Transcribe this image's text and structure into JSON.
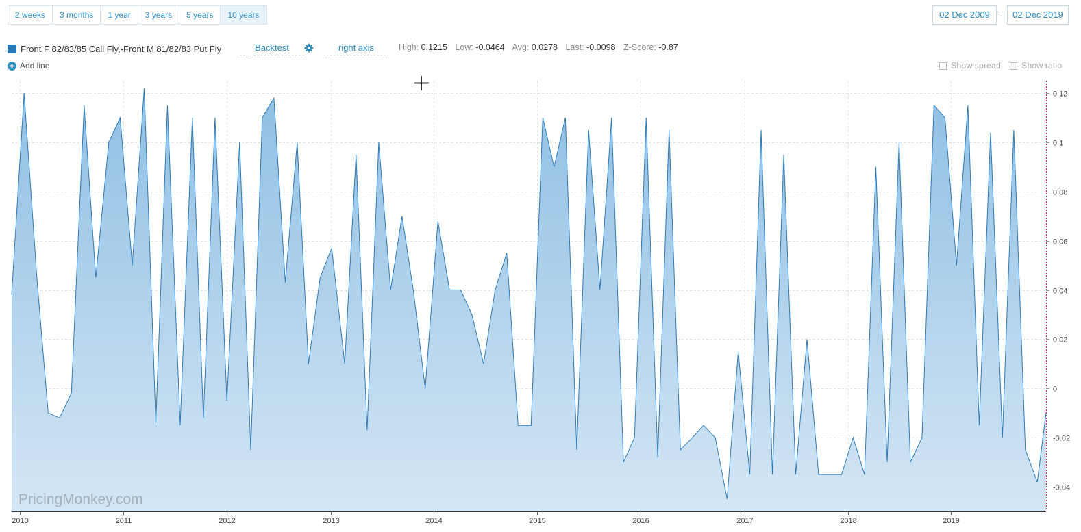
{
  "range_buttons": [
    {
      "label": "2 weeks",
      "active": false
    },
    {
      "label": "3 months",
      "active": false
    },
    {
      "label": "1 year",
      "active": false
    },
    {
      "label": "3 years",
      "active": false
    },
    {
      "label": "5 years",
      "active": false
    },
    {
      "label": "10 years",
      "active": true
    }
  ],
  "date_from": "02 Dec 2009",
  "date_separator": "-",
  "date_to": "02 Dec 2019",
  "series_label": "Front F 82/83/85 Call Fly,-Front M 81/82/83 Put Fly",
  "backtest_label": "Backtest",
  "axis_label": "right axis",
  "stats": {
    "high_label": "High:",
    "high": "0.1215",
    "low_label": "Low:",
    "low": "-0.0464",
    "avg_label": "Avg:",
    "avg": "0.0278",
    "last_label": "Last:",
    "last": "-0.0098",
    "z_label": "Z-Score:",
    "z": "-0.87"
  },
  "add_line_label": "Add line",
  "show_spread_label": "Show spread",
  "show_ratio_label": "Show ratio",
  "watermark": "PricingMonkey.com",
  "colors": {
    "line": "#2a7ab8",
    "fill_top": "#8fbfe3",
    "fill_bottom": "#d4e6f5",
    "accent": "#2a8fc7"
  },
  "icons": {
    "gear": "gear-icon",
    "add": "plus-circle-icon",
    "swatch": "series-swatch"
  },
  "chart_data": {
    "type": "area",
    "series": [
      {
        "name": "Front F 82/83/85 Call Fly,-Front M 81/82/83 Put Fly"
      }
    ],
    "y_axis_position": "right",
    "ylim": [
      -0.05,
      0.125
    ],
    "y_ticks": [
      0.12,
      0.1,
      0.08,
      0.06,
      0.04,
      0.02,
      0,
      -0.02,
      -0.04
    ],
    "y_tick_labels": [
      "0.12",
      "0.1",
      "0.08",
      "0.06",
      "0.04",
      "0.02",
      "0",
      "-0.02",
      "-0.04"
    ],
    "x_ticks": [
      "2010",
      "2011",
      "2012",
      "2013",
      "2014",
      "2015",
      "2016",
      "2017",
      "2018",
      "2019"
    ],
    "xlim": [
      "2009-12-02",
      "2019-12-02"
    ],
    "grid": true,
    "x": [
      "2009-12-02",
      "2010-01-15",
      "2010-03-01",
      "2010-04-10",
      "2010-05-20",
      "2010-07-01",
      "2010-08-15",
      "2010-09-25",
      "2010-11-10",
      "2010-12-20",
      "2011-02-01",
      "2011-03-15",
      "2011-04-25",
      "2011-06-05",
      "2011-07-20",
      "2011-09-01",
      "2011-10-10",
      "2011-11-20",
      "2012-01-01",
      "2012-02-15",
      "2012-03-25",
      "2012-05-05",
      "2012-06-15",
      "2012-07-25",
      "2012-09-05",
      "2012-10-15",
      "2012-11-25",
      "2013-01-05",
      "2013-02-20",
      "2013-04-01",
      "2013-05-10",
      "2013-06-20",
      "2013-08-01",
      "2013-09-10",
      "2013-10-20",
      "2013-12-01",
      "2014-01-15",
      "2014-02-25",
      "2014-04-05",
      "2014-05-15",
      "2014-06-25",
      "2014-08-05",
      "2014-09-15",
      "2014-10-25",
      "2014-12-10",
      "2015-01-20",
      "2015-03-01",
      "2015-04-10",
      "2015-05-20",
      "2015-07-01",
      "2015-08-10",
      "2015-09-20",
      "2015-11-01",
      "2015-12-10",
      "2016-01-20",
      "2016-03-01",
      "2016-04-10",
      "2016-05-20",
      "2016-07-01",
      "2016-08-10",
      "2016-09-20",
      "2016-11-01",
      "2016-12-10",
      "2017-01-20",
      "2017-03-01",
      "2017-04-10",
      "2017-05-20",
      "2017-07-01",
      "2017-08-10",
      "2017-09-20",
      "2017-11-01",
      "2017-12-10",
      "2018-01-20",
      "2018-03-01",
      "2018-04-10",
      "2018-05-20",
      "2018-07-01",
      "2018-08-10",
      "2018-09-20",
      "2018-11-01",
      "2018-12-10",
      "2019-01-20",
      "2019-03-01",
      "2019-04-10",
      "2019-05-20",
      "2019-07-01",
      "2019-08-10",
      "2019-09-20",
      "2019-11-01",
      "2019-12-02"
    ],
    "values": [
      0.038,
      0.12,
      0.045,
      -0.01,
      -0.012,
      -0.002,
      0.115,
      0.045,
      0.1,
      0.11,
      0.05,
      0.122,
      -0.014,
      0.115,
      -0.015,
      0.11,
      -0.012,
      0.11,
      -0.005,
      0.1,
      -0.025,
      0.11,
      0.118,
      0.043,
      0.1,
      0.01,
      0.045,
      0.057,
      0.01,
      0.095,
      -0.017,
      0.1,
      0.04,
      0.07,
      0.04,
      0.0,
      0.068,
      0.04,
      0.04,
      0.03,
      0.01,
      0.04,
      0.055,
      -0.015,
      -0.015,
      0.11,
      0.09,
      0.11,
      -0.025,
      0.105,
      0.04,
      0.11,
      -0.03,
      -0.02,
      0.11,
      -0.028,
      0.105,
      -0.025,
      -0.02,
      -0.015,
      -0.02,
      -0.045,
      0.015,
      -0.035,
      0.105,
      -0.035,
      0.095,
      -0.035,
      0.02,
      -0.035,
      -0.035,
      -0.035,
      -0.02,
      -0.035,
      0.09,
      -0.03,
      0.1,
      -0.03,
      -0.02,
      0.115,
      0.11,
      0.05,
      0.115,
      -0.015,
      0.104,
      -0.02,
      0.105,
      -0.025,
      -0.038,
      -0.0098
    ]
  }
}
